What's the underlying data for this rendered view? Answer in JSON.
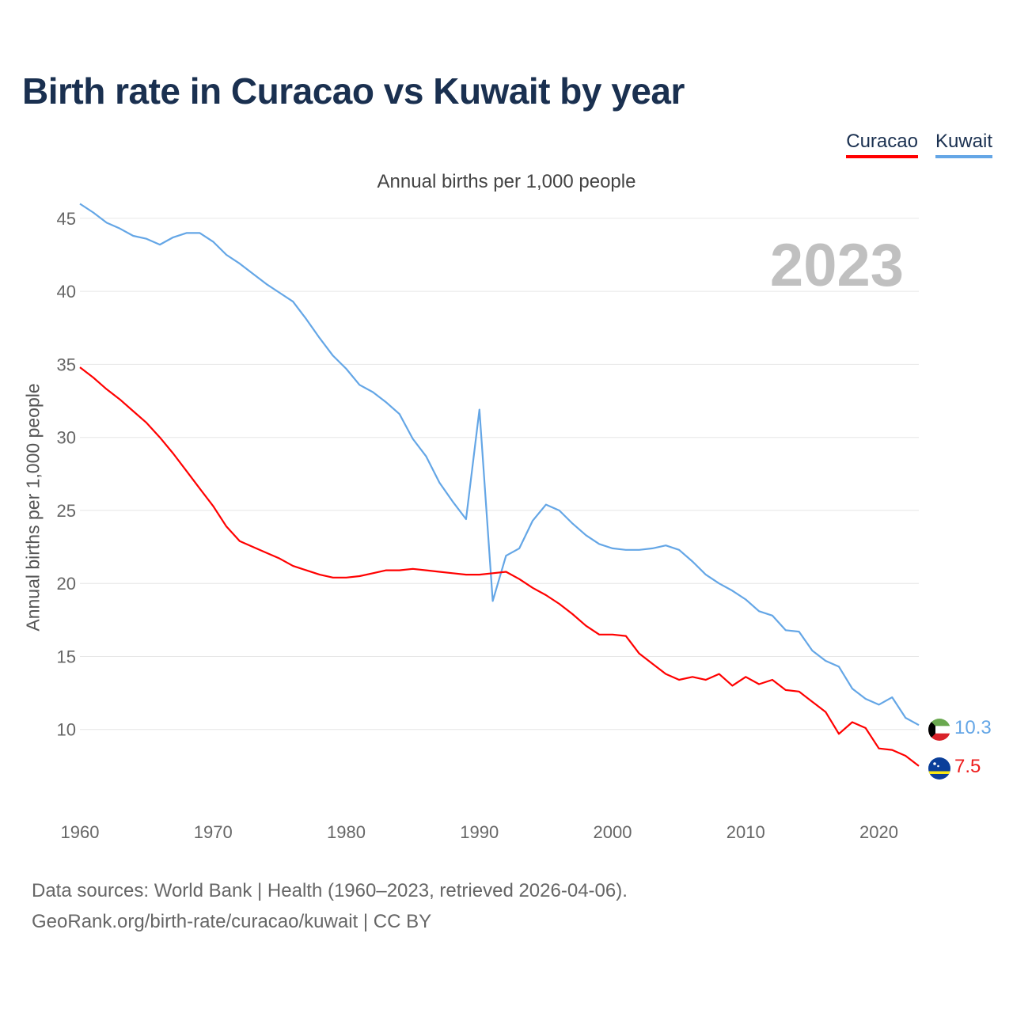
{
  "title": "Birth rate in Curacao vs Kuwait by year",
  "subtitle": "Annual births per 1,000 people",
  "year_watermark": "2023",
  "legend": [
    {
      "label": "Curacao",
      "color": "#ff0000"
    },
    {
      "label": "Kuwait",
      "color": "#64a6e6"
    }
  ],
  "footer": {
    "line1": "Data sources: World Bank | Health (1960–2023, retrieved 2026-04-06).",
    "line2": "GeoRank.org/birth-rate/curacao/kuwait | CC BY"
  },
  "end_labels": {
    "kuwait": "10.3",
    "curacao": "7.5"
  },
  "flags": {
    "kuwait": "kuwait-flag-icon",
    "curacao": "curacao-flag-icon"
  },
  "chart_data": {
    "type": "line",
    "title": "Birth rate in Curacao vs Kuwait by year",
    "xlabel": "",
    "ylabel": "Annual births per 1,000 people",
    "xlim": [
      1960,
      2023
    ],
    "ylim": [
      5,
      47
    ],
    "yticks": [
      10,
      15,
      20,
      25,
      30,
      35,
      40,
      45
    ],
    "xticks": [
      1960,
      1970,
      1980,
      1990,
      2000,
      2010,
      2020
    ],
    "grid": true,
    "x": [
      1960,
      1961,
      1962,
      1963,
      1964,
      1965,
      1966,
      1967,
      1968,
      1969,
      1970,
      1971,
      1972,
      1973,
      1974,
      1975,
      1976,
      1977,
      1978,
      1979,
      1980,
      1981,
      1982,
      1983,
      1984,
      1985,
      1986,
      1987,
      1988,
      1989,
      1990,
      1991,
      1992,
      1993,
      1994,
      1995,
      1996,
      1997,
      1998,
      1999,
      2000,
      2001,
      2002,
      2003,
      2004,
      2005,
      2006,
      2007,
      2008,
      2009,
      2010,
      2011,
      2012,
      2013,
      2014,
      2015,
      2016,
      2017,
      2018,
      2019,
      2020,
      2021,
      2022,
      2023
    ],
    "series": [
      {
        "name": "Curacao",
        "color": "#ff0000",
        "values": [
          34.8,
          34.1,
          33.3,
          32.6,
          31.8,
          31.0,
          30.0,
          28.9,
          27.7,
          26.5,
          25.3,
          23.9,
          22.9,
          22.5,
          22.1,
          21.7,
          21.2,
          20.9,
          20.6,
          20.4,
          20.4,
          20.5,
          20.7,
          20.9,
          20.9,
          21.0,
          20.9,
          20.8,
          20.7,
          20.6,
          20.6,
          20.7,
          20.8,
          20.3,
          19.7,
          19.2,
          18.6,
          17.9,
          17.1,
          16.5,
          16.5,
          16.4,
          15.2,
          14.5,
          13.8,
          13.4,
          13.6,
          13.4,
          13.8,
          13.0,
          13.6,
          13.1,
          13.4,
          12.7,
          12.6,
          11.9,
          11.2,
          9.7,
          10.5,
          10.1,
          8.7,
          8.6,
          8.2,
          7.5
        ]
      },
      {
        "name": "Kuwait",
        "color": "#64a6e6",
        "values": [
          46.0,
          45.4,
          44.7,
          44.3,
          43.8,
          43.6,
          43.2,
          43.7,
          44.0,
          44.0,
          43.4,
          42.5,
          41.9,
          41.2,
          40.5,
          39.9,
          39.3,
          38.1,
          36.8,
          35.6,
          34.7,
          33.6,
          33.1,
          32.4,
          31.6,
          29.9,
          28.7,
          26.9,
          25.6,
          24.4,
          31.9,
          18.8,
          21.9,
          22.4,
          24.3,
          25.4,
          25.0,
          24.1,
          23.3,
          22.7,
          22.4,
          22.3,
          22.3,
          22.4,
          22.6,
          22.3,
          21.5,
          20.6,
          20.0,
          19.5,
          18.9,
          18.1,
          17.8,
          16.8,
          16.7,
          15.4,
          14.7,
          14.3,
          12.8,
          12.1,
          11.7,
          12.2,
          10.8,
          10.3
        ]
      }
    ]
  }
}
